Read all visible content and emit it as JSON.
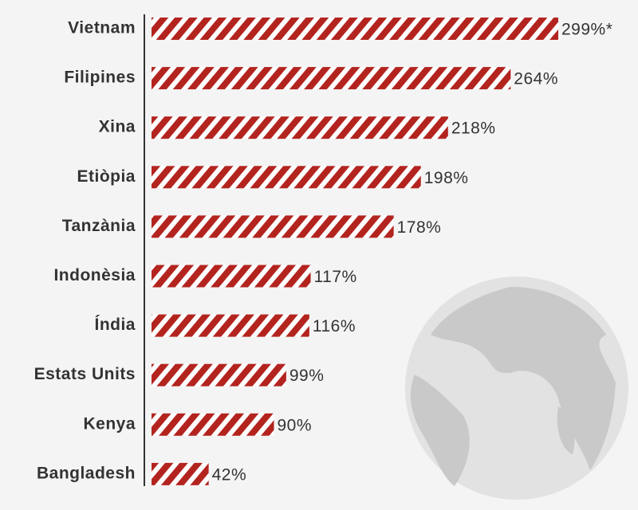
{
  "chart_data": {
    "type": "bar",
    "orientation": "horizontal",
    "categories": [
      "Vietnam",
      "Filipines",
      "Xina",
      "Etiòpia",
      "Tanzània",
      "Indonèsia",
      "Índia",
      "Estats Units",
      "Kenya",
      "Bangladesh"
    ],
    "values": [
      299,
      264,
      218,
      198,
      178,
      117,
      116,
      99,
      90,
      42
    ],
    "value_labels": [
      "299%*",
      "264%",
      "218%",
      "198%",
      "178%",
      "117%",
      "116%",
      "99%",
      "90%",
      "42%"
    ],
    "color": "#b3241f"
  }
}
